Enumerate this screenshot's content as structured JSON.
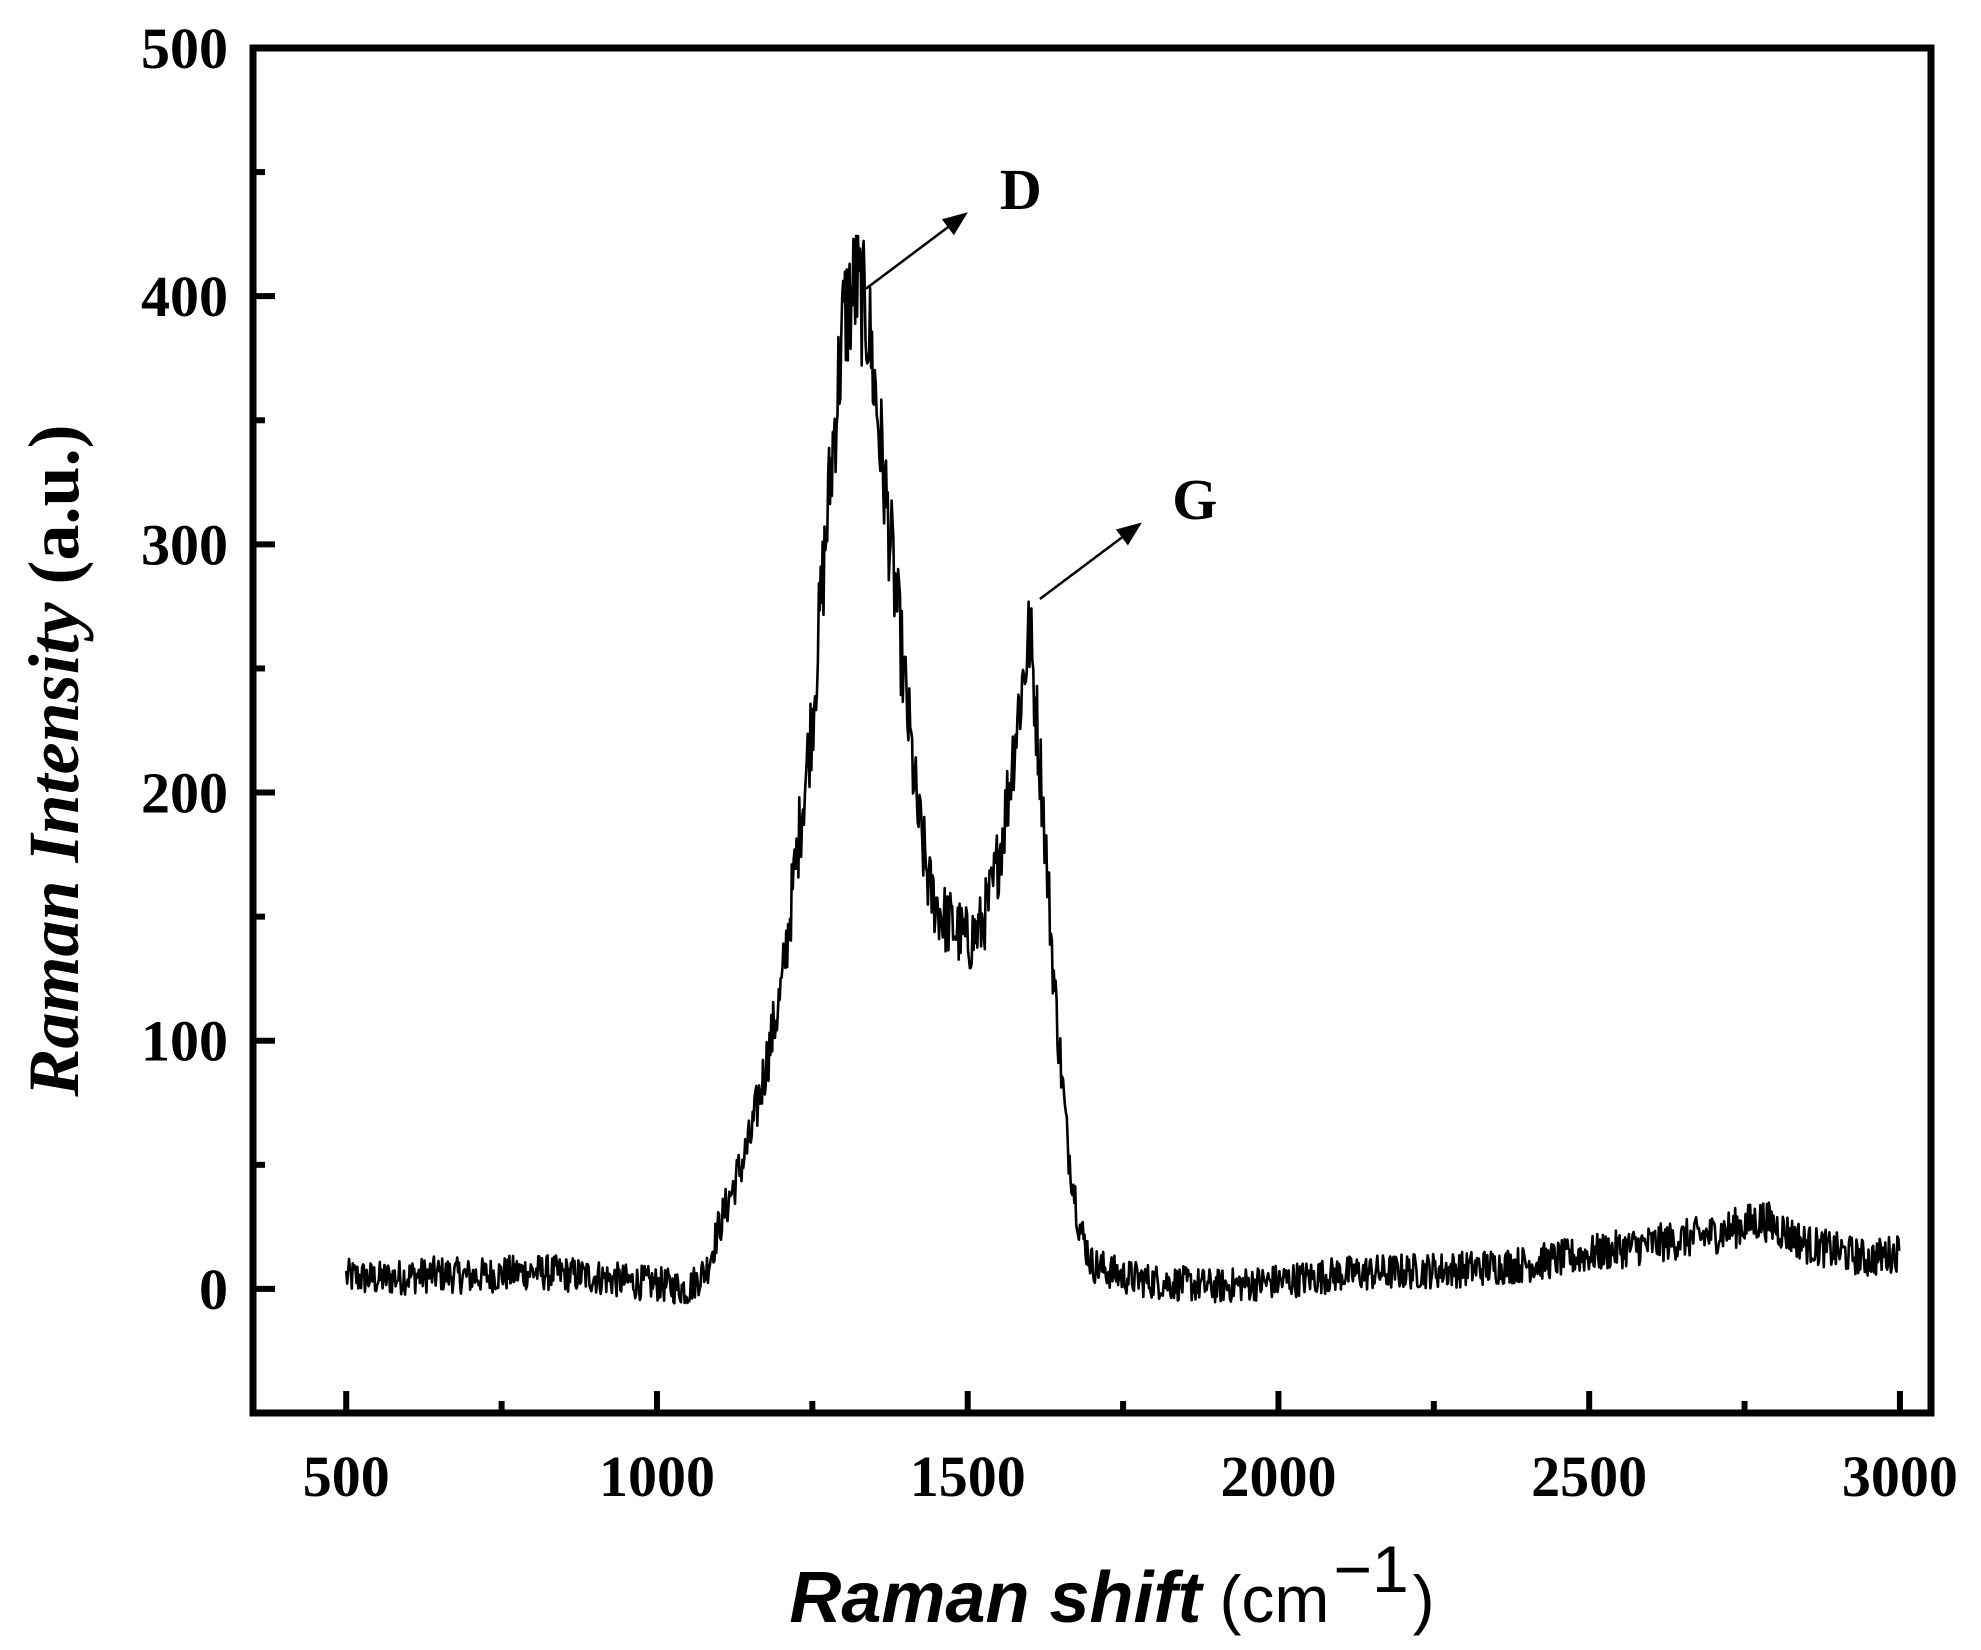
{
  "chart_data": {
    "type": "line",
    "xlabel_main": "Raman shift",
    "xlabel_unit": "(cm",
    "xlabel_sup": "−1",
    "xlabel_close": ")",
    "ylabel_italic": "Raman Intensity",
    "ylabel_unit": "(a.u.)",
    "xlim": [
      350,
      3050
    ],
    "ylim": [
      -50,
      500
    ],
    "x_ticks": [
      500,
      1000,
      1500,
      2000,
      2500,
      3000
    ],
    "x_tick_labels": [
      "500",
      "1000",
      "1500",
      "2000",
      "2500",
      "3000"
    ],
    "x_minor_ticks": [
      750,
      1250,
      1750,
      2250,
      2750
    ],
    "y_ticks": [
      0,
      100,
      200,
      300,
      400,
      500
    ],
    "y_tick_labels": [
      "0",
      "100",
      "200",
      "300",
      "400",
      "500"
    ],
    "y_minor_ticks": [
      50,
      150,
      250,
      350,
      450
    ],
    "grid": false,
    "series": [
      {
        "color": "#000000",
        "x": [
          500,
          550,
          600,
          650,
          700,
          750,
          800,
          850,
          900,
          950,
          1000,
          1050,
          1080,
          1100,
          1150,
          1200,
          1250,
          1280,
          1300,
          1320,
          1340,
          1360,
          1380,
          1400,
          1420,
          1440,
          1460,
          1480,
          1500,
          1520,
          1540,
          1560,
          1580,
          1600,
          1620,
          1640,
          1660,
          1680,
          1700,
          1750,
          1800,
          1850,
          1900,
          1950,
          2000,
          2100,
          2200,
          2300,
          2400,
          2500,
          2600,
          2700,
          2780,
          2850,
          2900,
          2950,
          3000
        ],
        "y": [
          5,
          4,
          5,
          6,
          5,
          6,
          7,
          6,
          5,
          3,
          2,
          0,
          8,
          25,
          60,
          120,
          230,
          330,
          390,
          405,
          390,
          340,
          290,
          240,
          190,
          160,
          150,
          145,
          140,
          145,
          160,
          190,
          230,
          265,
          200,
          120,
          60,
          25,
          10,
          5,
          3,
          2,
          1,
          2,
          3,
          6,
          7,
          8,
          10,
          14,
          18,
          22,
          28,
          18,
          15,
          12,
          15
        ]
      }
    ],
    "annotations": [
      {
        "text": "D",
        "x": 1320,
        "y": 405
      },
      {
        "text": "G",
        "x": 1600,
        "y": 280
      }
    ]
  }
}
